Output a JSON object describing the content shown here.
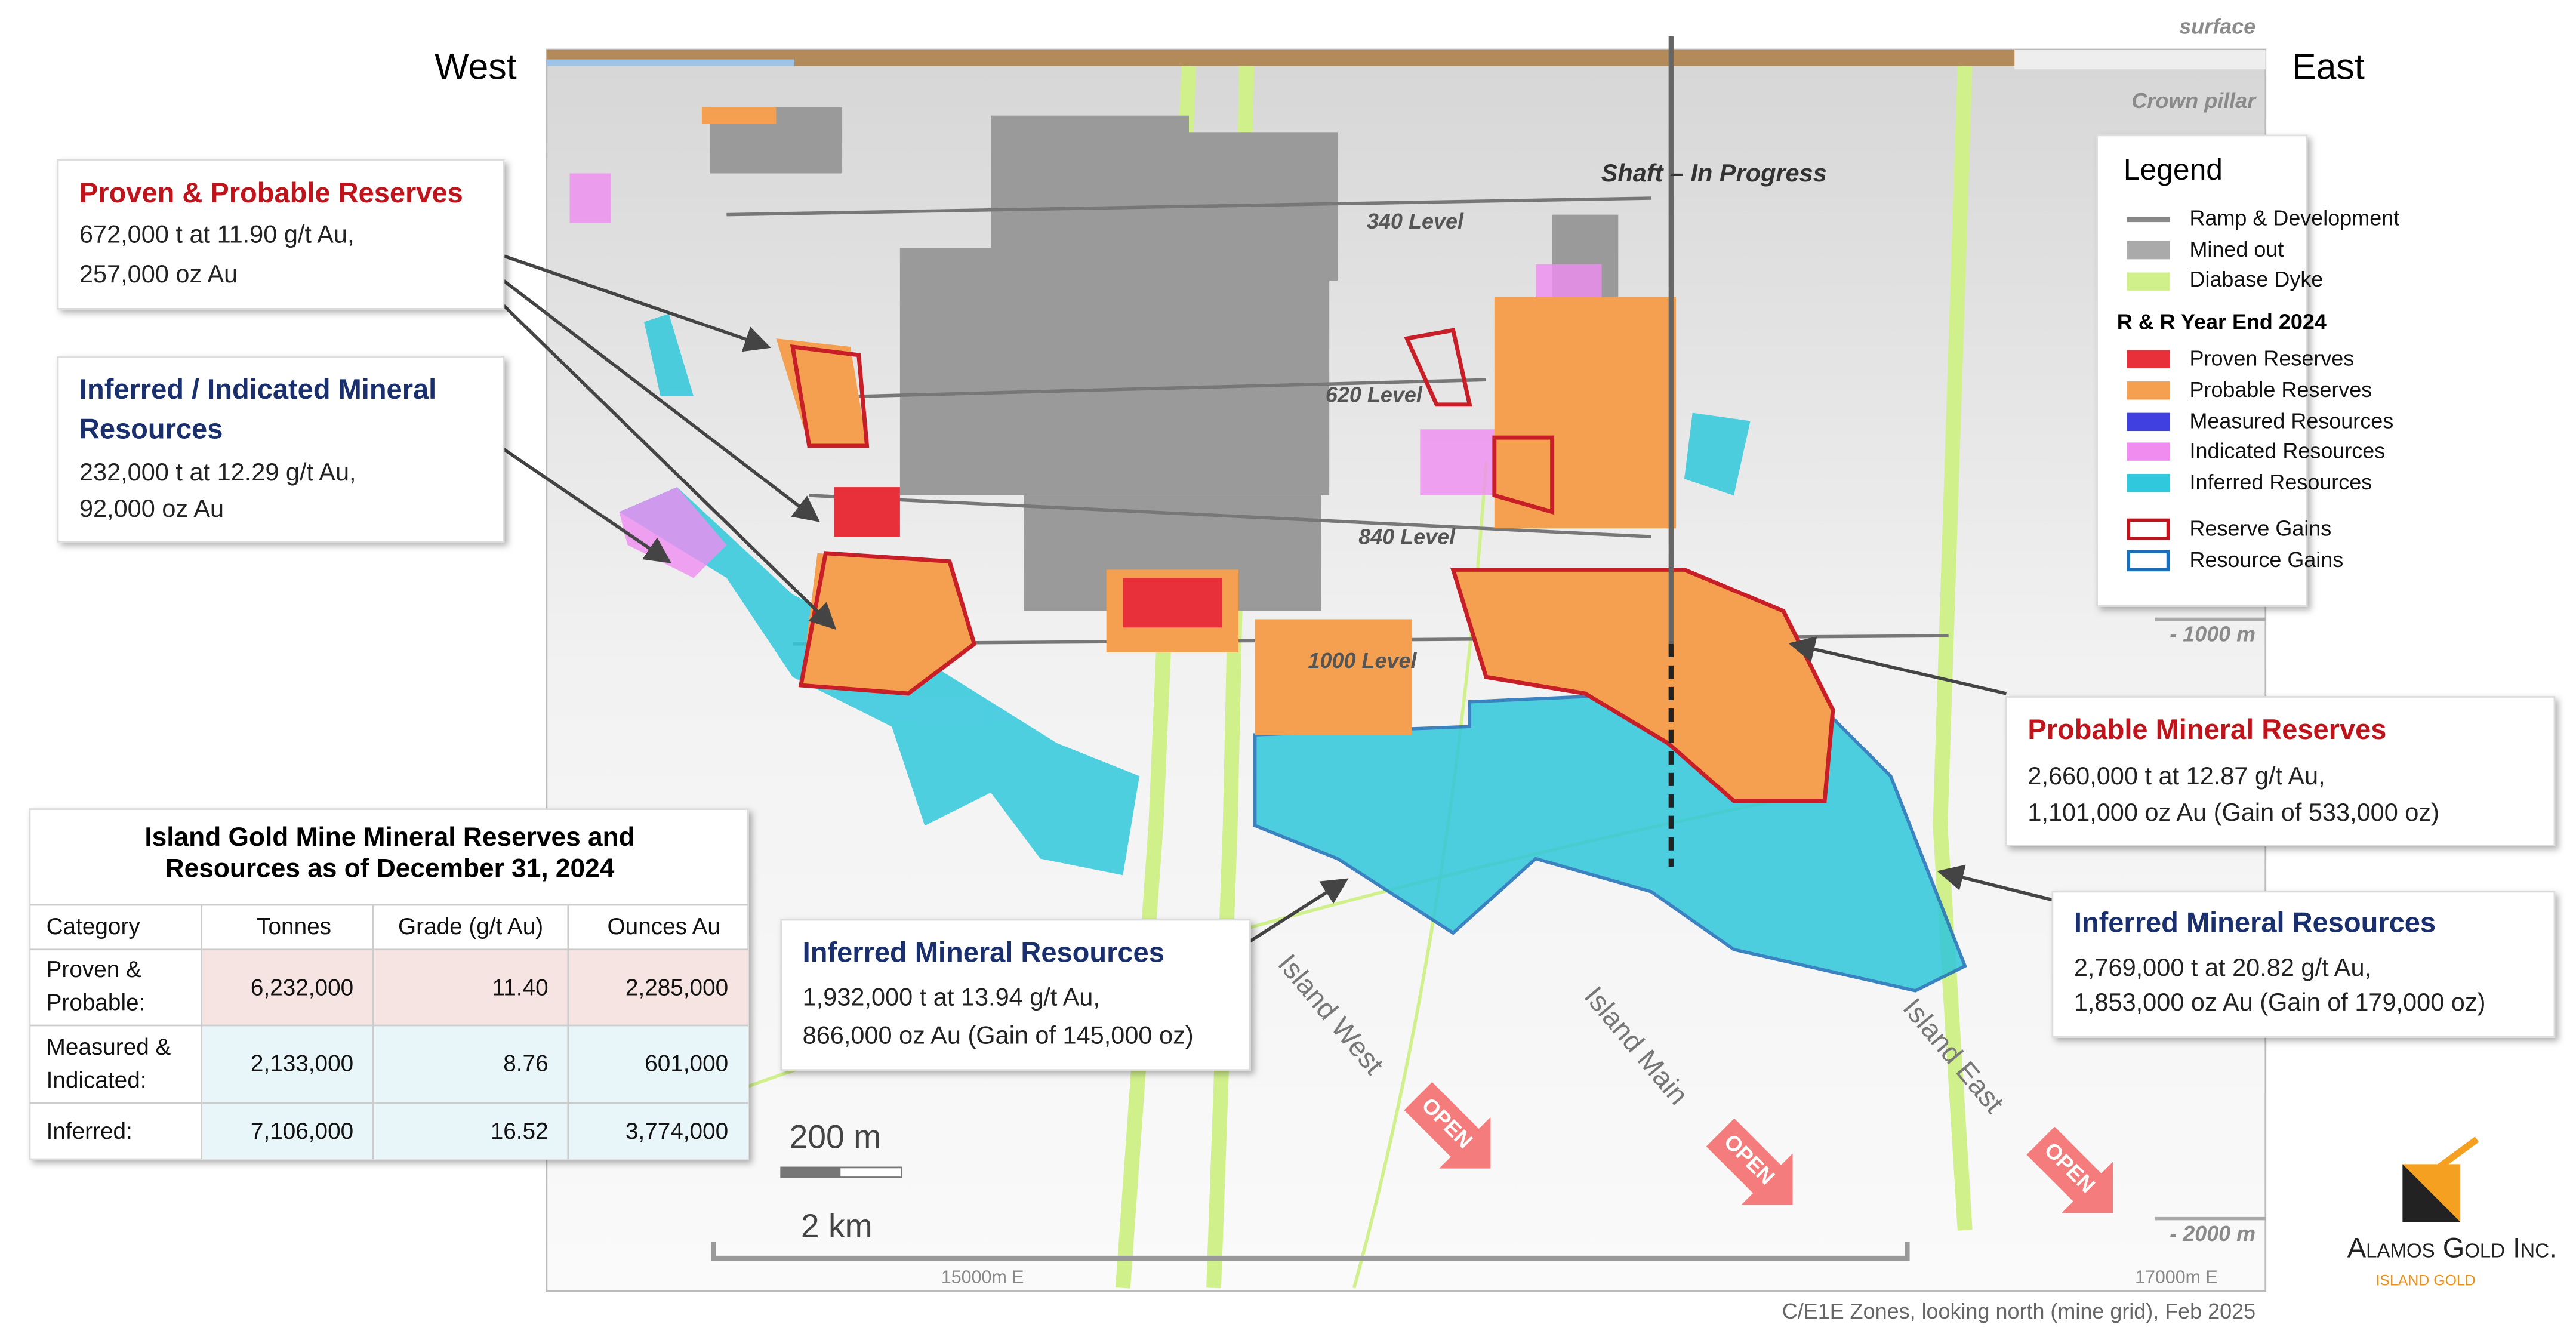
{
  "orientation": {
    "west": "West",
    "east": "East"
  },
  "section": {
    "surface": "surface",
    "crown_pillar": "Crown pillar",
    "shaft": "Shaft – In Progress",
    "levels": [
      "340 Level",
      "620 Level",
      "840 Level",
      "1000 Level"
    ],
    "depth_1000": "- 1000 m",
    "depth_2000": "- 2000 m"
  },
  "callouts": [
    {
      "title": [
        "Proven & Probable Reserves"
      ],
      "lines": [
        "672,000 t at 11.90 g/t Au,",
        "257,000 oz Au"
      ]
    },
    {
      "title": [
        "Inferred / Indicated Mineral",
        "Resources"
      ],
      "lines": [
        "232,000 t at 12.29 g/t Au,",
        "92,000 oz Au"
      ]
    },
    {
      "title": [
        "Probable Mineral Reserves"
      ],
      "lines": [
        "2,660,000 t at 12.87 g/t Au,",
        "1,101,000 oz Au (Gain of 533,000 oz)"
      ]
    },
    {
      "title": [
        "Inferred Mineral Resources"
      ],
      "lines": [
        "2,769,000 t at 20.82 g/t Au,",
        "1,853,000 oz Au (Gain of 179,000 oz)"
      ]
    },
    {
      "title": [
        "Inferred Mineral Resources"
      ],
      "lines": [
        "1,932,000 t at 13.94 g/t Au,",
        "866,000 oz Au (Gain of 145,000 oz)"
      ]
    }
  ],
  "legend": {
    "title": "Legend",
    "items": [
      "Ramp & Development",
      "Mined out",
      "Diabase Dyke"
    ],
    "subtitle": "R & R Year End 2024",
    "rr_items": [
      "Proven Reserves",
      "Probable Reserves",
      "Measured Resources",
      "Indicated Resources",
      "Inferred Resources"
    ],
    "gain_items": [
      "Reserve Gains",
      "Resource Gains"
    ]
  },
  "table": {
    "title": [
      "Island Gold Mine Mineral Reserves and",
      "Resources as of December 31, 2024"
    ],
    "header": [
      "Category",
      "Tonnes",
      "Grade (g/t Au)",
      "Ounces Au"
    ],
    "rows": [
      [
        [
          "Proven &",
          "Probable:"
        ],
        "6,232,000",
        "11.40",
        "2,285,000"
      ],
      [
        [
          "Measured &",
          "Indicated:"
        ],
        "2,133,000",
        "8.76",
        "601,000"
      ],
      [
        [
          "Inferred:"
        ],
        "7,106,000",
        "16.52",
        "3,774,000"
      ]
    ]
  },
  "zones": [
    "Island West",
    "Island Main",
    "Island East"
  ],
  "open_labels": [
    "OPEN",
    "OPEN",
    "OPEN"
  ],
  "scale": {
    "small": "200 m",
    "large": "2 km"
  },
  "grid_labels": [
    "15000m E",
    "17000m E"
  ],
  "footer": "C/E1E Zones, looking north (mine grid), Feb 2025",
  "logo": {
    "name": "Alamos Gold Inc.",
    "sub": "ISLAND GOLD"
  }
}
